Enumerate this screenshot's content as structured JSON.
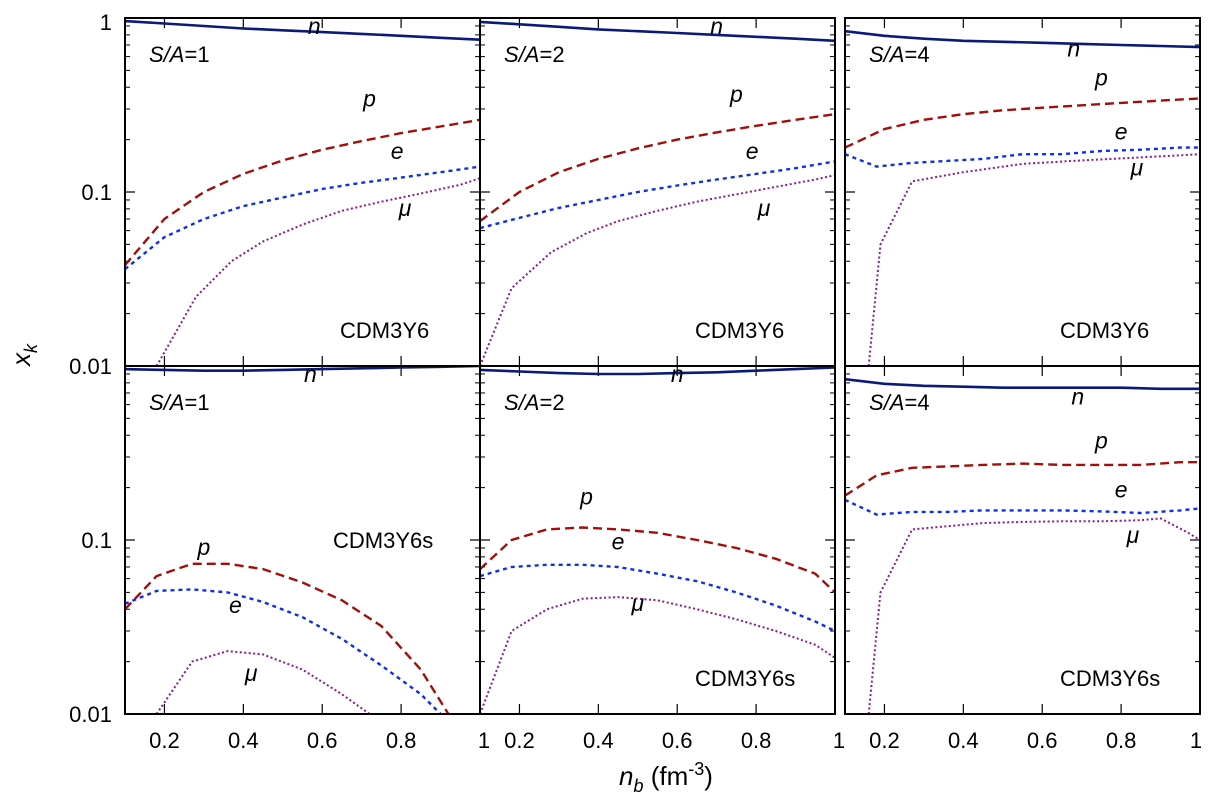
{
  "chart_data": {
    "type": "line",
    "layout": "2x3 panels, shared axes",
    "xlabel": "n_b (fm^-3)",
    "xlabel_text": "n",
    "xlabel_sub": "b",
    "xlabel_unit_pre": " (fm",
    "xlabel_unit_sup": "-3",
    "xlabel_unit_post": ")",
    "ylabel": "x_k",
    "ylabel_text": "x",
    "ylabel_sub": "k",
    "xlim": [
      0.1,
      1.0
    ],
    "ylim": [
      0.01,
      1.0
    ],
    "yscale": "log",
    "grid": false,
    "x_ticks": [
      "0.2",
      "0.4",
      "0.6",
      "0.8",
      "1"
    ],
    "x_tick_values": [
      0.2,
      0.4,
      0.6,
      0.8,
      1.0
    ],
    "y_ticks": [
      "0.01",
      "0.1",
      "1"
    ],
    "y_tick_values": [
      0.01,
      0.1,
      1.0
    ],
    "colors": {
      "n": "#0b1a7a",
      "p": "#a0100a",
      "e": "#1030e0",
      "mu": "#8a1a8a"
    },
    "panels": [
      {
        "model": "CDM3Y6",
        "sa_label": "S/A",
        "sa_value": "=1",
        "series": [
          {
            "name": "n",
            "x": [
              0.1,
              0.2,
              0.3,
              0.4,
              0.5,
              0.6,
              0.7,
              0.8,
              0.9,
              1.0
            ],
            "y": [
              0.96,
              0.93,
              0.9,
              0.87,
              0.85,
              0.83,
              0.81,
              0.79,
              0.77,
              0.75
            ]
          },
          {
            "name": "p",
            "x": [
              0.1,
              0.2,
              0.3,
              0.4,
              0.5,
              0.6,
              0.7,
              0.8,
              0.9,
              1.0
            ],
            "y": [
              0.038,
              0.07,
              0.1,
              0.127,
              0.152,
              0.175,
              0.196,
              0.218,
              0.238,
              0.26
            ]
          },
          {
            "name": "e",
            "x": [
              0.1,
              0.2,
              0.3,
              0.4,
              0.5,
              0.6,
              0.7,
              0.8,
              0.9,
              1.0
            ],
            "y": [
              0.036,
              0.055,
              0.07,
              0.083,
              0.093,
              0.104,
              0.113,
              0.121,
              0.13,
              0.14
            ]
          },
          {
            "name": "μ",
            "x": [
              0.18,
              0.28,
              0.37,
              0.45,
              0.55,
              0.65,
              0.75,
              0.85,
              0.95,
              1.0
            ],
            "y": [
              0.01,
              0.025,
              0.04,
              0.052,
              0.065,
              0.078,
              0.088,
              0.098,
              0.11,
              0.12
            ]
          }
        ],
        "labels": {
          "n": [
            0.58,
            0.81
          ],
          "p": [
            0.72,
            0.31
          ],
          "e": [
            0.79,
            0.155
          ],
          "μ": [
            0.81,
            0.073
          ]
        }
      },
      {
        "model": "CDM3Y6",
        "sa_label": "S/A",
        "sa_value": "=2",
        "series": [
          {
            "name": "n",
            "x": [
              0.1,
              0.2,
              0.3,
              0.4,
              0.5,
              0.6,
              0.7,
              0.8,
              0.9,
              1.0
            ],
            "y": [
              0.95,
              0.92,
              0.89,
              0.86,
              0.84,
              0.82,
              0.8,
              0.78,
              0.76,
              0.74
            ]
          },
          {
            "name": "p",
            "x": [
              0.1,
              0.2,
              0.3,
              0.4,
              0.5,
              0.6,
              0.7,
              0.8,
              0.9,
              1.0
            ],
            "y": [
              0.068,
              0.1,
              0.13,
              0.155,
              0.178,
              0.2,
              0.22,
              0.24,
              0.26,
              0.28
            ]
          },
          {
            "name": "e",
            "x": [
              0.1,
              0.2,
              0.3,
              0.4,
              0.5,
              0.6,
              0.7,
              0.8,
              0.9,
              1.0
            ],
            "y": [
              0.062,
              0.071,
              0.081,
              0.09,
              0.1,
              0.109,
              0.118,
              0.127,
              0.137,
              0.15
            ]
          },
          {
            "name": "μ",
            "x": [
              0.1,
              0.18,
              0.28,
              0.37,
              0.45,
              0.55,
              0.65,
              0.75,
              0.85,
              0.95,
              1.0
            ],
            "y": [
              0.01,
              0.028,
              0.045,
              0.058,
              0.068,
              0.078,
              0.088,
              0.097,
              0.107,
              0.118,
              0.125
            ]
          }
        ],
        "labels": {
          "n": [
            0.7,
            0.81
          ],
          "p": [
            0.75,
            0.33
          ],
          "e": [
            0.79,
            0.155
          ],
          "μ": [
            0.82,
            0.073
          ]
        }
      },
      {
        "model": "CDM3Y6",
        "sa_label": "S/A",
        "sa_value": "=4",
        "series": [
          {
            "name": "n",
            "x": [
              0.1,
              0.2,
              0.3,
              0.4,
              0.5,
              0.6,
              0.7,
              0.8,
              0.9,
              1.0
            ],
            "y": [
              0.84,
              0.79,
              0.76,
              0.74,
              0.73,
              0.72,
              0.71,
              0.7,
              0.69,
              0.68
            ]
          },
          {
            "name": "p",
            "x": [
              0.1,
              0.2,
              0.3,
              0.4,
              0.5,
              0.6,
              0.7,
              0.8,
              0.9,
              1.0
            ],
            "y": [
              0.18,
              0.23,
              0.26,
              0.28,
              0.295,
              0.305,
              0.315,
              0.325,
              0.335,
              0.345
            ]
          },
          {
            "name": "e",
            "x": [
              0.1,
              0.18,
              0.27,
              0.45,
              0.55,
              0.65,
              0.75,
              0.85,
              0.95,
              1.0
            ],
            "y": [
              0.165,
              0.14,
              0.147,
              0.155,
              0.165,
              0.165,
              0.172,
              0.175,
              0.18,
              0.18
            ]
          },
          {
            "name": "μ",
            "x": [
              0.16,
              0.19,
              0.27,
              0.4,
              0.55,
              0.7,
              0.85,
              1.0
            ],
            "y": [
              0.01,
              0.05,
              0.115,
              0.13,
              0.145,
              0.152,
              0.158,
              0.165
            ]
          }
        ],
        "labels": {
          "n": [
            0.68,
            0.6
          ],
          "p": [
            0.75,
            0.41
          ],
          "e": [
            0.8,
            0.2
          ],
          "μ": [
            0.84,
            0.124
          ]
        }
      },
      {
        "model": "CDM3Y6s",
        "sa_label": "S/A",
        "sa_value": "=1",
        "series": [
          {
            "name": "n",
            "x": [
              0.1,
              0.2,
              0.3,
              0.4,
              0.5,
              0.6,
              0.7,
              0.8,
              0.9,
              1.0
            ],
            "y": [
              0.96,
              0.95,
              0.94,
              0.94,
              0.95,
              0.96,
              0.97,
              0.98,
              0.99,
              1.0
            ]
          },
          {
            "name": "p",
            "x": [
              0.1,
              0.18,
              0.27,
              0.36,
              0.45,
              0.55,
              0.65,
              0.75,
              0.85,
              0.92
            ],
            "y": [
              0.04,
              0.062,
              0.073,
              0.073,
              0.068,
              0.057,
              0.045,
              0.032,
              0.018,
              0.01
            ]
          },
          {
            "name": "e",
            "x": [
              0.1,
              0.18,
              0.27,
              0.36,
              0.45,
              0.55,
              0.65,
              0.75,
              0.85,
              0.9
            ],
            "y": [
              0.043,
              0.051,
              0.052,
              0.05,
              0.044,
              0.036,
              0.027,
              0.019,
              0.013,
              0.01
            ]
          },
          {
            "name": "μ",
            "x": [
              0.18,
              0.27,
              0.36,
              0.45,
              0.55,
              0.65,
              0.72
            ],
            "y": [
              0.01,
              0.02,
              0.023,
              0.022,
              0.018,
              0.013,
              0.01
            ]
          }
        ],
        "labels": {
          "n": [
            0.57,
            0.81
          ],
          "p": [
            0.3,
            0.082
          ],
          "e": [
            0.38,
            0.038
          ],
          "μ": [
            0.42,
            0.0155
          ]
        }
      },
      {
        "model": "CDM3Y6s",
        "sa_label": "S/A",
        "sa_value": "=2",
        "series": [
          {
            "name": "n",
            "x": [
              0.1,
              0.2,
              0.3,
              0.4,
              0.5,
              0.6,
              0.7,
              0.8,
              0.9,
              1.0
            ],
            "y": [
              0.95,
              0.93,
              0.91,
              0.9,
              0.9,
              0.91,
              0.92,
              0.94,
              0.96,
              0.98
            ]
          },
          {
            "name": "p",
            "x": [
              0.1,
              0.18,
              0.27,
              0.36,
              0.45,
              0.55,
              0.65,
              0.75,
              0.85,
              0.95,
              1.0
            ],
            "y": [
              0.068,
              0.1,
              0.115,
              0.118,
              0.115,
              0.11,
              0.1,
              0.09,
              0.078,
              0.064,
              0.05
            ]
          },
          {
            "name": "e",
            "x": [
              0.1,
              0.18,
              0.27,
              0.36,
              0.45,
              0.55,
              0.65,
              0.75,
              0.85,
              0.95,
              1.0
            ],
            "y": [
              0.062,
              0.07,
              0.072,
              0.072,
              0.07,
              0.064,
              0.058,
              0.05,
              0.042,
              0.034,
              0.03
            ]
          },
          {
            "name": "μ",
            "x": [
              0.1,
              0.18,
              0.27,
              0.36,
              0.45,
              0.55,
              0.65,
              0.75,
              0.85,
              0.95,
              1.0
            ],
            "y": [
              0.01,
              0.03,
              0.04,
              0.046,
              0.047,
              0.045,
              0.04,
              0.035,
              0.03,
              0.025,
              0.021
            ]
          }
        ],
        "labels": {
          "n": [
            0.6,
            0.81
          ],
          "p": [
            0.37,
            0.16
          ],
          "e": [
            0.45,
            0.088
          ],
          "μ": [
            0.5,
            0.039
          ]
        }
      },
      {
        "model": "CDM3Y6s",
        "sa_label": "S/A",
        "sa_value": "=4",
        "series": [
          {
            "name": "n",
            "x": [
              0.1,
              0.2,
              0.3,
              0.4,
              0.5,
              0.6,
              0.7,
              0.8,
              0.9,
              1.0
            ],
            "y": [
              0.84,
              0.79,
              0.77,
              0.76,
              0.75,
              0.75,
              0.75,
              0.75,
              0.74,
              0.74
            ]
          },
          {
            "name": "p",
            "x": [
              0.1,
              0.18,
              0.27,
              0.36,
              0.45,
              0.55,
              0.65,
              0.75,
              0.85,
              0.95,
              1.0
            ],
            "y": [
              0.18,
              0.235,
              0.26,
              0.265,
              0.27,
              0.275,
              0.27,
              0.27,
              0.27,
              0.28,
              0.28
            ]
          },
          {
            "name": "e",
            "x": [
              0.1,
              0.18,
              0.27,
              0.36,
              0.45,
              0.55,
              0.65,
              0.75,
              0.85,
              0.95,
              1.0
            ],
            "y": [
              0.17,
              0.14,
              0.145,
              0.145,
              0.148,
              0.148,
              0.148,
              0.146,
              0.143,
              0.148,
              0.152
            ]
          },
          {
            "name": "μ",
            "x": [
              0.16,
              0.19,
              0.27,
              0.36,
              0.45,
              0.55,
              0.65,
              0.75,
              0.85,
              0.9,
              0.97,
              1.0
            ],
            "y": [
              0.01,
              0.05,
              0.115,
              0.12,
              0.125,
              0.127,
              0.128,
              0.128,
              0.13,
              0.133,
              0.11,
              0.1
            ]
          }
        ],
        "labels": {
          "n": [
            0.69,
            0.6
          ],
          "p": [
            0.75,
            0.335
          ],
          "e": [
            0.8,
            0.175
          ],
          "μ": [
            0.83,
            0.096
          ]
        }
      }
    ]
  }
}
